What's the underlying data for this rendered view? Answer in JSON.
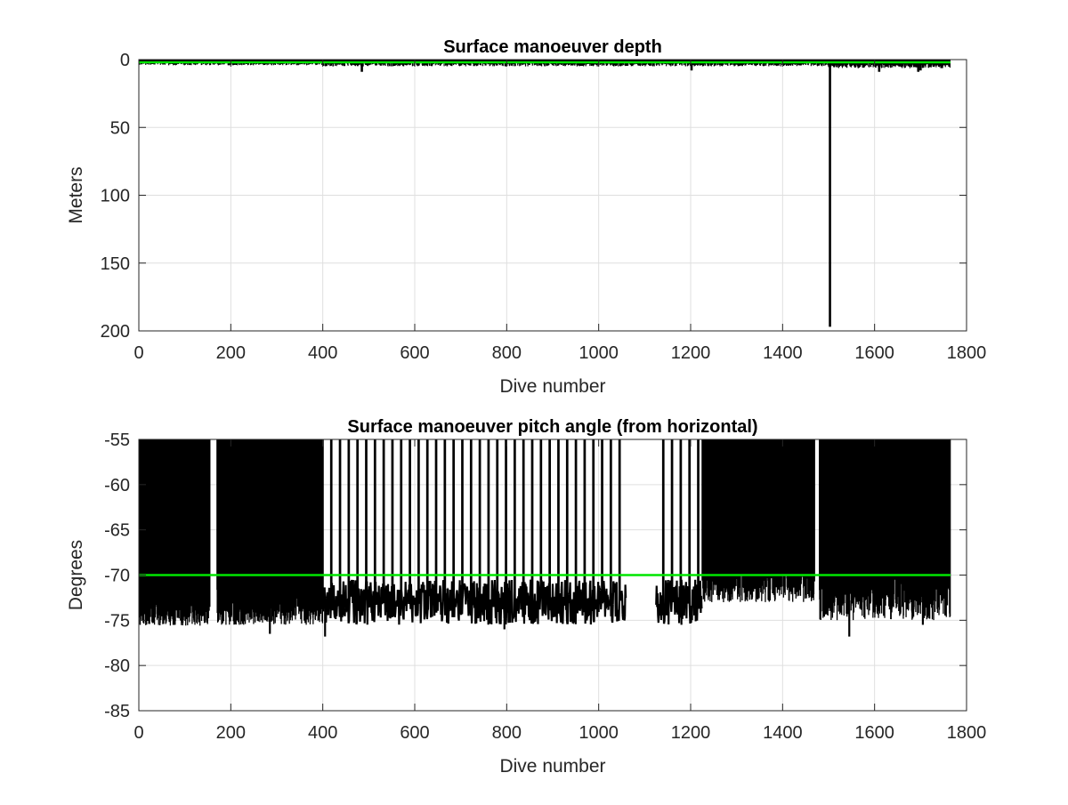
{
  "colors": {
    "data": "#000000",
    "reference": "#00e600",
    "grid": "#dfdfdf",
    "axis": "#262626",
    "background": "#ffffff"
  },
  "chart_data": [
    {
      "type": "bar",
      "title": "Surface manoeuver depth",
      "xlabel": "Dive number",
      "ylabel": "Meters",
      "xlim": [
        0,
        1800
      ],
      "ylim": [
        0,
        200
      ],
      "y_reversed": true,
      "grid": true,
      "x_ticks": [
        "0",
        "200",
        "400",
        "600",
        "800",
        "1000",
        "1200",
        "1400",
        "1600",
        "1800"
      ],
      "y_ticks": [
        "0",
        "50",
        "100",
        "150",
        "200"
      ],
      "reference_line": {
        "y": 2,
        "color": "#00e600"
      },
      "bar_fill_from": 0,
      "x_extent": [
        1,
        1765
      ],
      "segments": [
        {
          "x_range": [
            1,
            400
          ],
          "typical": 3,
          "variation": 1.2
        },
        {
          "x_range": [
            400,
            1500
          ],
          "typical": 3.5,
          "variation": 1.5
        },
        {
          "x_range": [
            1500,
            1765
          ],
          "typical": 4.5,
          "variation": 1.8
        }
      ],
      "spikes": [
        {
          "x": 485,
          "y": 9
        },
        {
          "x": 1202,
          "y": 8
        },
        {
          "x": 1503,
          "y": 197
        },
        {
          "x": 1610,
          "y": 9
        },
        {
          "x": 1695,
          "y": 9
        },
        {
          "x": 1700,
          "y": 8
        }
      ]
    },
    {
      "type": "bar",
      "title": "Surface manoeuver pitch angle (from horizontal)",
      "xlabel": "Dive number",
      "ylabel": "Degrees",
      "xlim": [
        0,
        1800
      ],
      "ylim": [
        -85,
        -55
      ],
      "grid": true,
      "x_ticks": [
        "0",
        "200",
        "400",
        "600",
        "800",
        "1000",
        "1200",
        "1400",
        "1600",
        "1800"
      ],
      "y_ticks": [
        "-55",
        "-60",
        "-65",
        "-70",
        "-75",
        "-80",
        "-85"
      ],
      "reference_line": {
        "y": -70,
        "color": "#00e600"
      },
      "bar_fill_from": -55,
      "x_extent": [
        1,
        1765
      ],
      "gaps": [
        [
          155,
          170
        ],
        [
          1060,
          1125
        ],
        [
          1470,
          1480
        ]
      ],
      "dense_regions": [
        {
          "x_range": [
            1,
            155
          ],
          "typical": -74,
          "variation": 1.6
        },
        {
          "x_range": [
            170,
            400
          ],
          "typical": -73.5,
          "variation": 2
        },
        {
          "x_range": [
            1225,
            1470
          ],
          "typical": -70.5,
          "variation": 2.5
        },
        {
          "x_range": [
            1480,
            1765
          ],
          "typical": -72,
          "variation": 3
        }
      ],
      "sparse_region": {
        "x_range": [
          400,
          1225
        ],
        "typical": -73,
        "variation": 2.5
      },
      "min_points": [
        {
          "x": 285,
          "y": -76.5
        },
        {
          "x": 405,
          "y": -76.8
        },
        {
          "x": 795,
          "y": -76
        },
        {
          "x": 1180,
          "y": -75.5
        },
        {
          "x": 1545,
          "y": -76.8
        },
        {
          "x": 1705,
          "y": -75.5
        }
      ]
    }
  ]
}
